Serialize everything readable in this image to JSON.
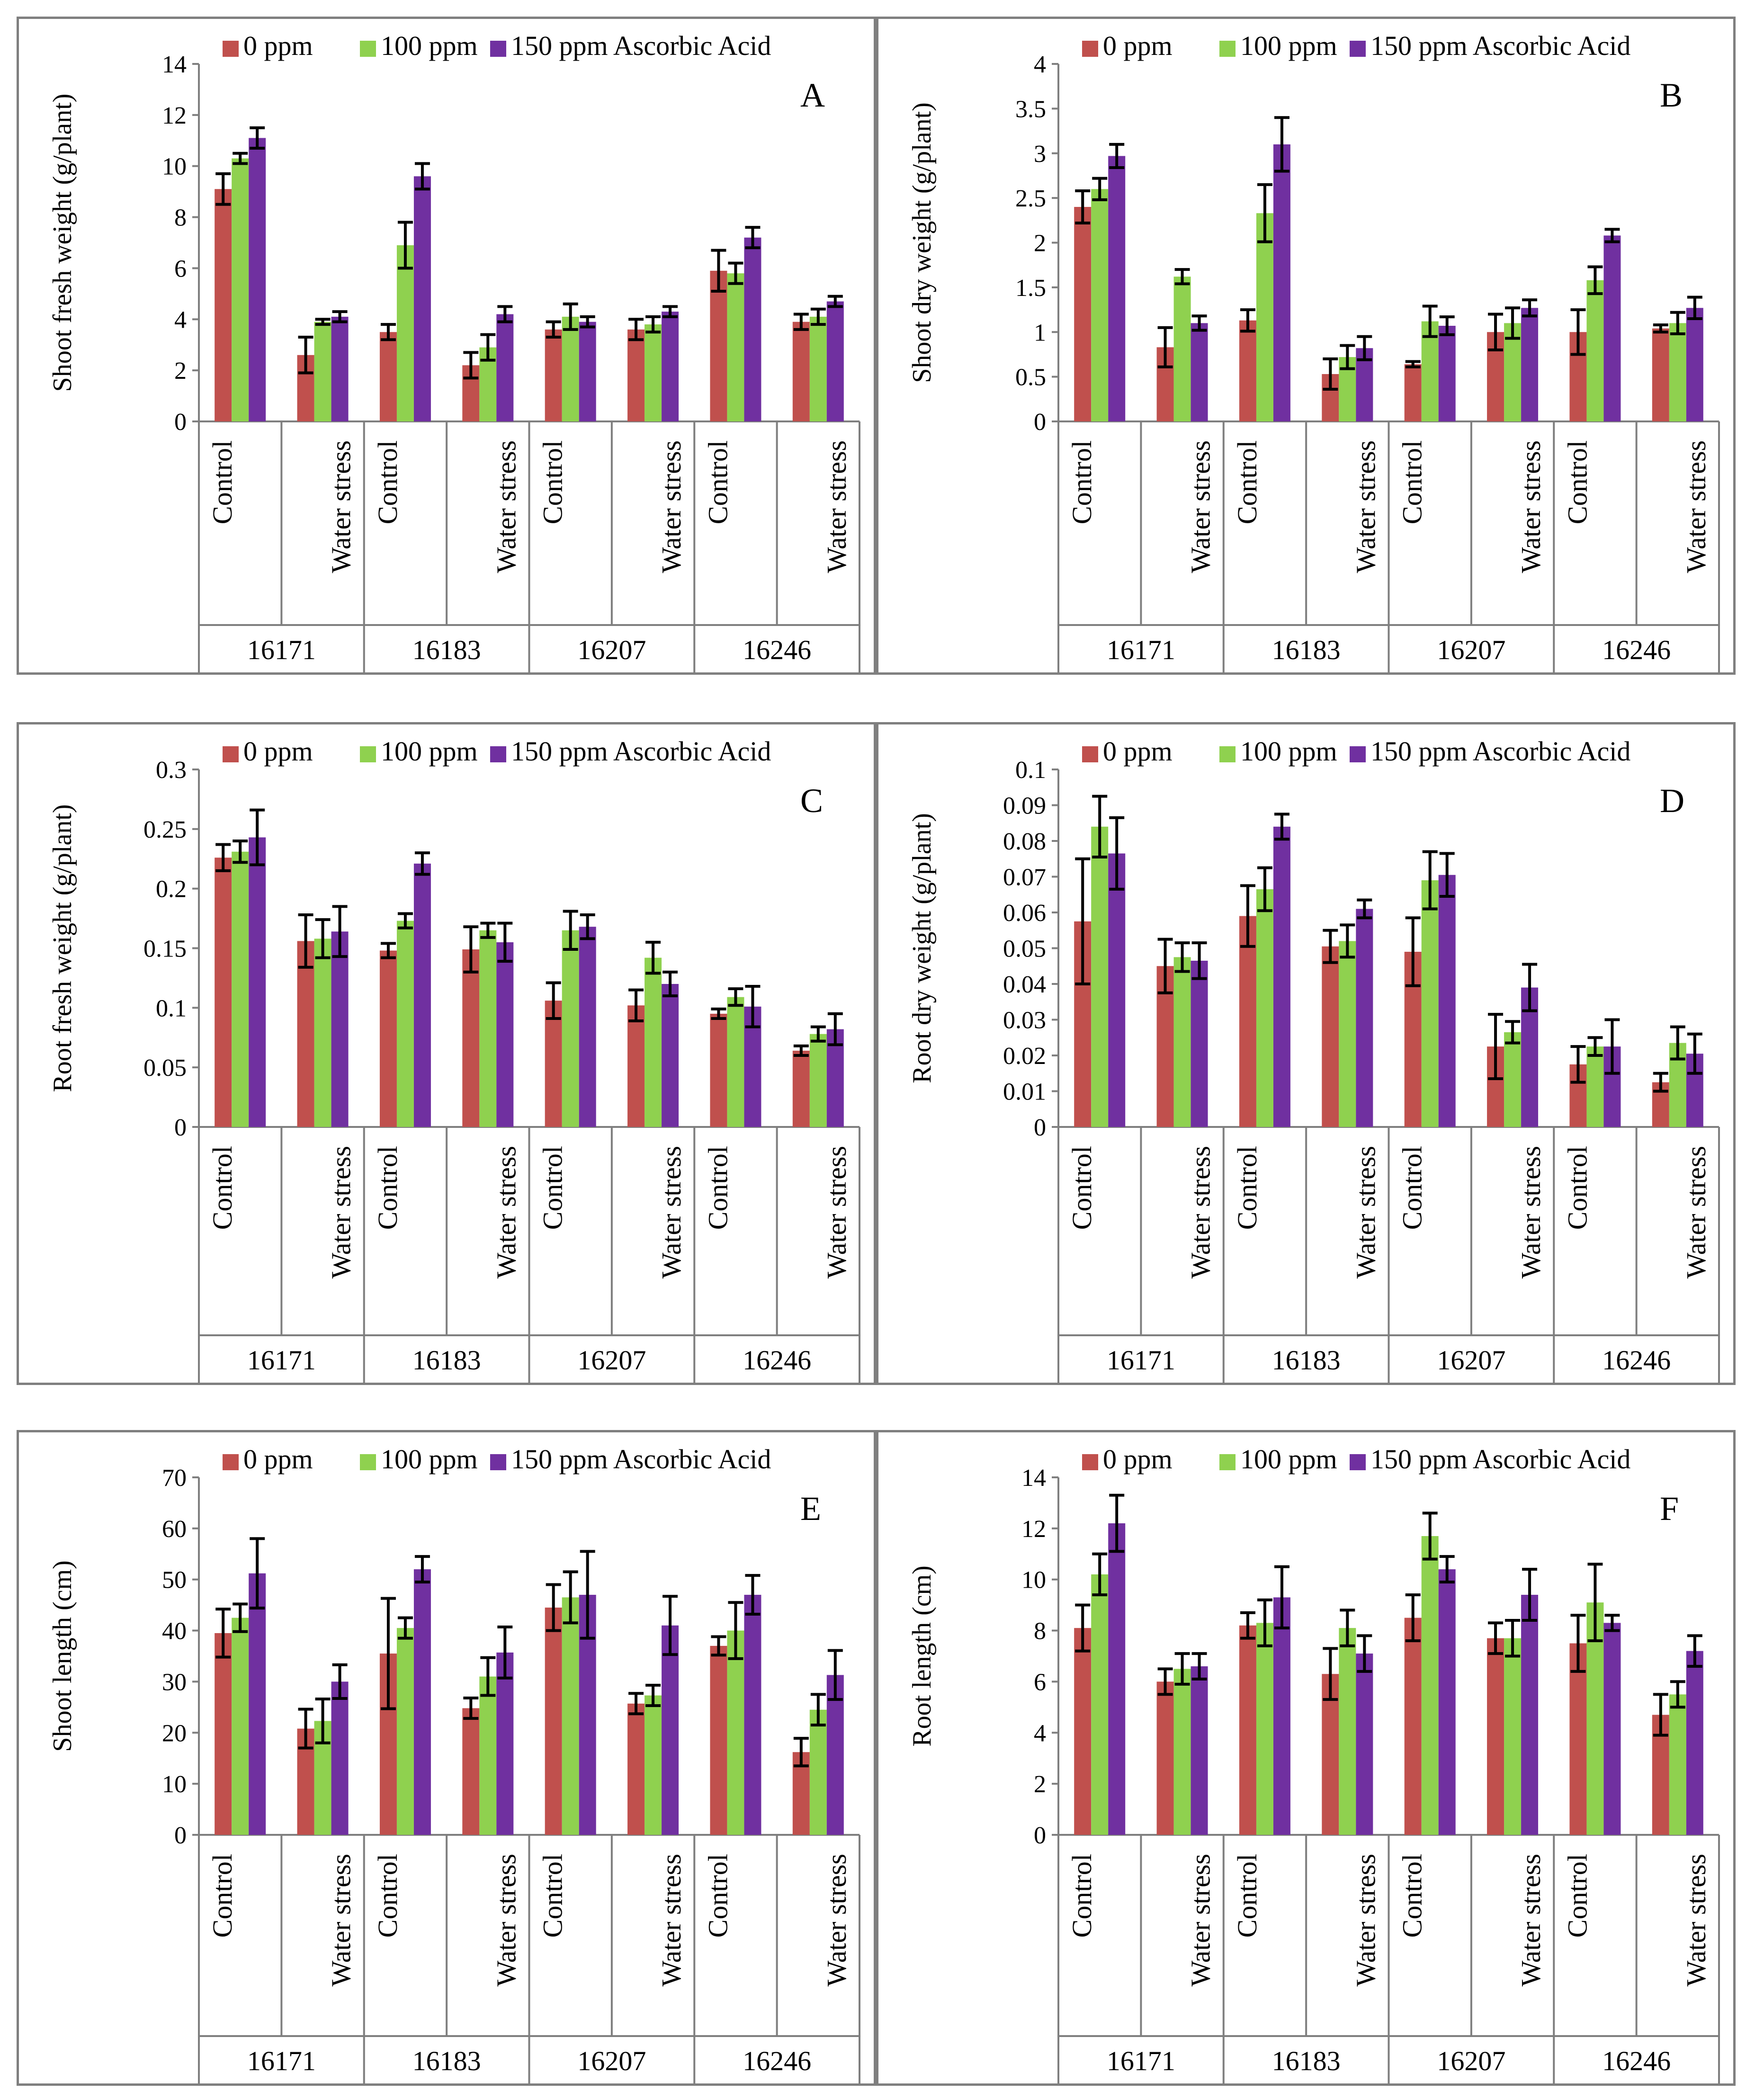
{
  "colors": {
    "s0": "#c0504d",
    "s1": "#8fd14f",
    "s2": "#7030a0",
    "border": "#7f7f7f",
    "errorbar": "#000000"
  },
  "chart_data": [
    {
      "type": "bar",
      "panel_label": "A",
      "ylabel": "Shoot fresh weight (g/plant)",
      "ylim": [
        0,
        14
      ],
      "yticks": [
        "0",
        "2",
        "4",
        "6",
        "8",
        "10",
        "12",
        "14"
      ],
      "legend": [
        "0 ppm",
        "100 ppm",
        "150 ppm Ascorbic Acid"
      ],
      "legend_position": "top",
      "categories": [
        "Control",
        "Water stress",
        "Control",
        "Water stress",
        "Control",
        "Water stress",
        "Control",
        "Water stress"
      ],
      "groups": [
        "16171",
        "16183",
        "16207",
        "16246"
      ],
      "series": [
        {
          "name": "0 ppm",
          "values": [
            9.1,
            2.6,
            3.5,
            2.2,
            3.6,
            3.6,
            5.9,
            3.9
          ],
          "errors": [
            0.6,
            0.7,
            0.3,
            0.5,
            0.3,
            0.4,
            0.8,
            0.3
          ]
        },
        {
          "name": "100 ppm",
          "values": [
            10.3,
            3.9,
            6.9,
            2.9,
            4.1,
            3.8,
            5.8,
            4.1
          ],
          "errors": [
            0.2,
            0.1,
            0.9,
            0.5,
            0.5,
            0.3,
            0.4,
            0.3
          ]
        },
        {
          "name": "150 ppm Ascorbic Acid",
          "values": [
            11.1,
            4.1,
            9.6,
            4.2,
            3.9,
            4.3,
            7.2,
            4.7
          ],
          "errors": [
            0.4,
            0.2,
            0.5,
            0.3,
            0.2,
            0.2,
            0.4,
            0.2
          ]
        }
      ]
    },
    {
      "type": "bar",
      "panel_label": "B",
      "ylabel": "Shoot dry weight (g/plant)",
      "ylim": [
        0,
        4
      ],
      "yticks": [
        "0",
        "0.5",
        "1",
        "1.5",
        "2",
        "2.5",
        "3",
        "3.5",
        "4"
      ],
      "legend": [
        "0 ppm",
        "100 ppm",
        "150 ppm Ascorbic Acid"
      ],
      "legend_position": "top",
      "categories": [
        "Control",
        "Water stress",
        "Control",
        "Water stress",
        "Control",
        "Water stress",
        "Control",
        "Water stress"
      ],
      "groups": [
        "16171",
        "16183",
        "16207",
        "16246"
      ],
      "series": [
        {
          "name": "0 ppm",
          "values": [
            2.4,
            0.83,
            1.13,
            0.53,
            0.64,
            1.0,
            1.0,
            1.04
          ],
          "errors": [
            0.18,
            0.22,
            0.12,
            0.17,
            0.03,
            0.2,
            0.25,
            0.04
          ]
        },
        {
          "name": "100 ppm",
          "values": [
            2.6,
            1.62,
            2.33,
            0.72,
            1.12,
            1.1,
            1.58,
            1.1
          ],
          "errors": [
            0.12,
            0.08,
            0.32,
            0.13,
            0.17,
            0.17,
            0.15,
            0.12
          ]
        },
        {
          "name": "150 ppm Ascorbic Acid",
          "values": [
            2.97,
            1.1,
            3.1,
            0.82,
            1.07,
            1.27,
            2.08,
            1.27
          ],
          "errors": [
            0.13,
            0.08,
            0.3,
            0.13,
            0.1,
            0.09,
            0.07,
            0.12
          ]
        }
      ]
    },
    {
      "type": "bar",
      "panel_label": "C",
      "ylabel": "Root fresh weight (g/plant)",
      "ylim": [
        0,
        0.3
      ],
      "yticks": [
        "0",
        "0.05",
        "0.1",
        "0.15",
        "0.2",
        "0.25",
        "0.3"
      ],
      "legend": [
        "0 ppm",
        "100 ppm",
        "150 ppm Ascorbic Acid"
      ],
      "legend_position": "top",
      "categories": [
        "Control",
        "Water stress",
        "Control",
        "Water stress",
        "Control",
        "Water stress",
        "Control",
        "Water stress"
      ],
      "groups": [
        "16171",
        "16183",
        "16207",
        "16246"
      ],
      "series": [
        {
          "name": "0 ppm",
          "values": [
            0.226,
            0.156,
            0.148,
            0.149,
            0.106,
            0.102,
            0.095,
            0.064
          ],
          "errors": [
            0.011,
            0.022,
            0.006,
            0.019,
            0.015,
            0.013,
            0.004,
            0.004
          ]
        },
        {
          "name": "100 ppm",
          "values": [
            0.231,
            0.158,
            0.173,
            0.165,
            0.165,
            0.142,
            0.109,
            0.078
          ],
          "errors": [
            0.009,
            0.016,
            0.006,
            0.006,
            0.016,
            0.013,
            0.007,
            0.006
          ]
        },
        {
          "name": "150 ppm Ascorbic Acid",
          "values": [
            0.243,
            0.164,
            0.221,
            0.155,
            0.168,
            0.12,
            0.101,
            0.082
          ],
          "errors": [
            0.023,
            0.021,
            0.009,
            0.016,
            0.01,
            0.01,
            0.017,
            0.013
          ]
        }
      ]
    },
    {
      "type": "bar",
      "panel_label": "D",
      "ylabel": "Root dry weight (g/plant)",
      "ylim": [
        0,
        0.1
      ],
      "yticks": [
        "0",
        "0.01",
        "0.02",
        "0.03",
        "0.04",
        "0.05",
        "0.06",
        "0.07",
        "0.08",
        "0.09",
        "0.1"
      ],
      "legend": [
        "0 ppm",
        "100 ppm",
        "150 ppm Ascorbic Acid"
      ],
      "legend_position": "top",
      "categories": [
        "Control",
        "Water stress",
        "Control",
        "Water stress",
        "Control",
        "Water stress",
        "Control",
        "Water stress"
      ],
      "groups": [
        "16171",
        "16183",
        "16207",
        "16246"
      ],
      "series": [
        {
          "name": "0 ppm",
          "values": [
            0.0575,
            0.045,
            0.059,
            0.0505,
            0.049,
            0.0225,
            0.0175,
            0.0125
          ],
          "errors": [
            0.0175,
            0.0075,
            0.0085,
            0.0045,
            0.0095,
            0.009,
            0.005,
            0.0025
          ]
        },
        {
          "name": "100 ppm",
          "values": [
            0.084,
            0.0475,
            0.0665,
            0.052,
            0.069,
            0.0265,
            0.0225,
            0.0235
          ],
          "errors": [
            0.0085,
            0.004,
            0.006,
            0.0045,
            0.008,
            0.003,
            0.0025,
            0.0045
          ]
        },
        {
          "name": "150 ppm Ascorbic Acid",
          "values": [
            0.0765,
            0.0465,
            0.084,
            0.061,
            0.0705,
            0.039,
            0.0225,
            0.0205
          ],
          "errors": [
            0.01,
            0.005,
            0.0035,
            0.0025,
            0.006,
            0.0065,
            0.0075,
            0.0055
          ]
        }
      ]
    },
    {
      "type": "bar",
      "panel_label": "E",
      "ylabel": "Shoot length (cm)",
      "ylim": [
        0,
        70
      ],
      "yticks": [
        "0",
        "10",
        "20",
        "30",
        "40",
        "50",
        "60",
        "70"
      ],
      "legend": [
        "0 ppm",
        "100 ppm",
        "150 ppm Ascorbic Acid"
      ],
      "legend_position": "top",
      "categories": [
        "Control",
        "Water stress",
        "Control",
        "Water stress",
        "Control",
        "Water stress",
        "Control",
        "Water stress"
      ],
      "groups": [
        "16171",
        "16183",
        "16207",
        "16246"
      ],
      "series": [
        {
          "name": "0 ppm",
          "values": [
            39.5,
            20.8,
            35.5,
            24.8,
            44.5,
            25.7,
            37.0,
            16.2
          ],
          "errors": [
            4.7,
            3.8,
            10.8,
            2.0,
            4.5,
            2.0,
            1.8,
            2.7
          ]
        },
        {
          "name": "100 ppm",
          "values": [
            42.5,
            22.3,
            40.5,
            31.0,
            46.5,
            27.3,
            40.0,
            24.5
          ],
          "errors": [
            2.7,
            4.3,
            2.0,
            3.7,
            5.0,
            2.0,
            5.5,
            3.0
          ]
        },
        {
          "name": "150 ppm Ascorbic Acid",
          "values": [
            51.2,
            30.0,
            52.0,
            35.7,
            47.0,
            41.0,
            47.0,
            31.3
          ],
          "errors": [
            6.8,
            3.3,
            2.5,
            5.0,
            8.5,
            5.7,
            3.8,
            4.8
          ]
        }
      ]
    },
    {
      "type": "bar",
      "panel_label": "F",
      "ylabel": "Root length (cm)",
      "ylim": [
        0,
        14
      ],
      "yticks": [
        "0",
        "2",
        "4",
        "6",
        "8",
        "10",
        "12",
        "14"
      ],
      "legend": [
        "0 ppm",
        "100 ppm",
        "150 ppm Ascorbic Acid"
      ],
      "legend_position": "top",
      "categories": [
        "Control",
        "Water stress",
        "Control",
        "Water stress",
        "Control",
        "Water stress",
        "Control",
        "Water stress"
      ],
      "groups": [
        "16171",
        "16183",
        "16207",
        "16246"
      ],
      "series": [
        {
          "name": "0 ppm",
          "values": [
            8.1,
            6.0,
            8.2,
            6.3,
            8.5,
            7.7,
            7.5,
            4.7
          ],
          "errors": [
            0.9,
            0.5,
            0.5,
            1.0,
            0.9,
            0.6,
            1.1,
            0.8
          ]
        },
        {
          "name": "100 ppm",
          "values": [
            10.2,
            6.5,
            8.3,
            8.1,
            11.7,
            7.7,
            9.1,
            5.5
          ],
          "errors": [
            0.8,
            0.6,
            0.9,
            0.7,
            0.9,
            0.7,
            1.5,
            0.5
          ]
        },
        {
          "name": "150 ppm Ascorbic Acid",
          "values": [
            12.2,
            6.6,
            9.3,
            7.1,
            10.4,
            9.4,
            8.3,
            7.2
          ],
          "errors": [
            1.1,
            0.5,
            1.2,
            0.7,
            0.5,
            1.0,
            0.3,
            0.6
          ]
        }
      ]
    }
  ]
}
